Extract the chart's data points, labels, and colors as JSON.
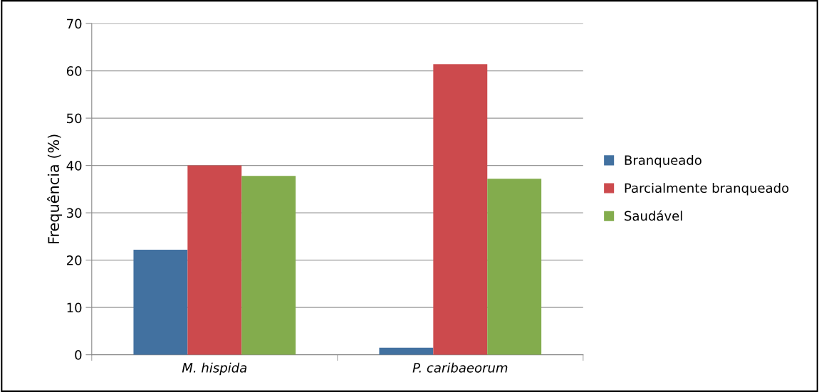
{
  "chart_data": {
    "type": "bar",
    "ylabel": "Frequência (%)",
    "categories": [
      "M. hispida",
      "P. caribaeorum"
    ],
    "series": [
      {
        "name": "Branqueado",
        "color": "#4271a0",
        "values": [
          22.2,
          1.5
        ]
      },
      {
        "name": "Parcialmente branqueado",
        "color": "#cc4a4d",
        "values": [
          40,
          61.4
        ]
      },
      {
        "name": "Saudável",
        "color": "#83ac4d",
        "values": [
          37.8,
          37.2
        ]
      }
    ],
    "ylim": [
      0,
      70
    ],
    "yticks": [
      0,
      10,
      20,
      30,
      40,
      50,
      60,
      70
    ],
    "grid": "y",
    "legend": "right"
  }
}
